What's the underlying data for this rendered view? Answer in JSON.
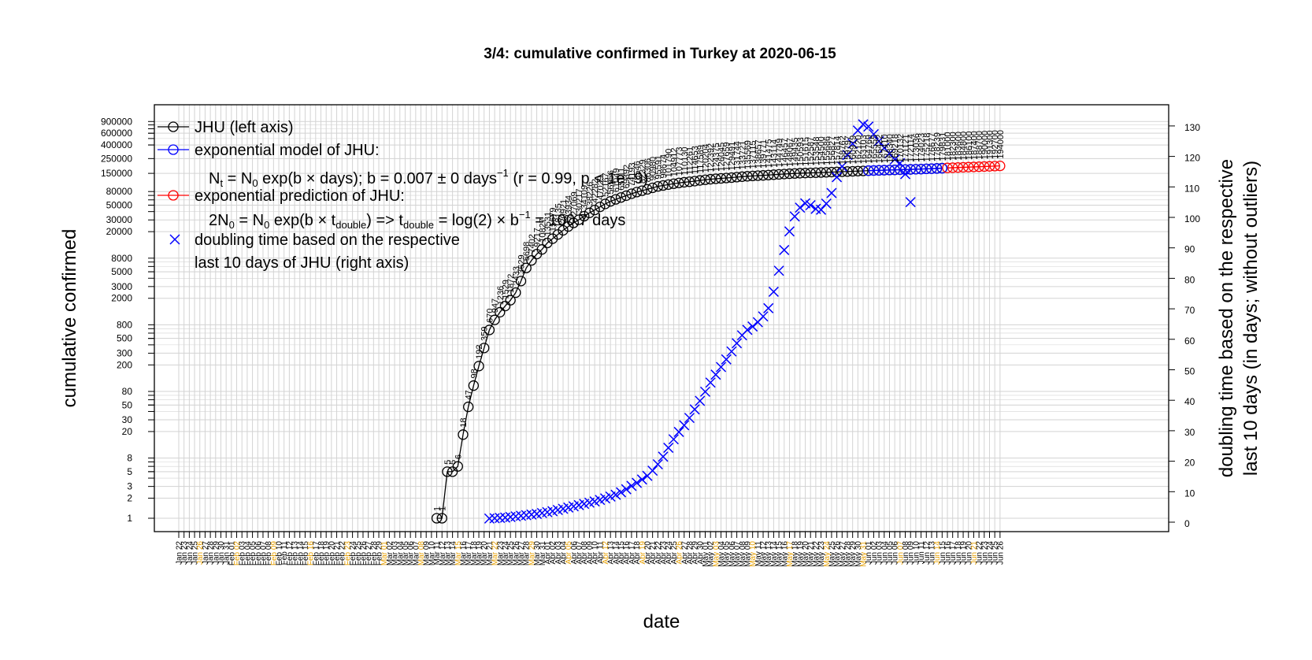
{
  "chart_data": {
    "type": "line",
    "title": "3/4: cumulative confirmed in Turkey at 2020-06-15",
    "xlabel": "date",
    "ylabel_left": "cumulative confirmed",
    "ylabel_right_line1": "doubling time based on the respective",
    "ylabel_right_line2": "last 10 days (in days; without outliers)",
    "y_left_scale": "log",
    "y_left_ticks": [
      1,
      2,
      3,
      5,
      8,
      20,
      30,
      50,
      80,
      200,
      300,
      500,
      800,
      2000,
      3000,
      5000,
      8000,
      20000,
      30000,
      50000,
      80000,
      150000,
      250000,
      400000,
      600000,
      900000
    ],
    "y_left_tick_labels": [
      "1",
      "2",
      "3",
      "5",
      "8",
      "20",
      "30",
      "50",
      "80",
      "200",
      "300",
      "500",
      "800",
      "2000",
      "3000",
      "5000",
      "8000",
      "20000",
      "30000",
      "50000",
      "80000",
      "150000",
      "250000",
      "400000",
      "600000",
      "900000"
    ],
    "y_right_ticks": [
      0,
      10,
      20,
      30,
      40,
      50,
      60,
      70,
      80,
      90,
      100,
      110,
      120,
      130
    ],
    "y_right_tick_labels": [
      "0",
      "10",
      "20",
      "30",
      "40",
      "50",
      "60",
      "70",
      "80",
      "90",
      "100",
      "110",
      "120",
      "130"
    ],
    "y_right_lim": [
      0,
      130
    ],
    "x_start": "2020-01-22",
    "x_end": "2020-06-26",
    "grid": true,
    "legend_position": "top-left",
    "legend": {
      "jhu": "JHU (left axis)",
      "model": "exponential model of JHU:",
      "model_formula_lhs": "N",
      "model_formula_sub": "t",
      "model_formula_rest": " = N",
      "model_formula_sub0": "0",
      "model_formula_tail": " exp(b × days); b = 0.007 ± 0 days",
      "model_formula_exp": "−1",
      "model_formula_end": " (r = 0.99, p < 1e−9)",
      "prediction": "exponential prediction of JHU:",
      "prediction_formula_a": "2N",
      "prediction_formula_sub0": "0",
      "prediction_formula_b": " = N",
      "prediction_formula_sub0b": "0",
      "prediction_formula_c": " exp(b × t",
      "prediction_formula_subd": "double",
      "prediction_formula_d": ") => t",
      "prediction_formula_sube": "double",
      "prediction_formula_e": " = log(2) × b",
      "prediction_formula_exp": "−1",
      "prediction_formula_f": " = 100.7 days",
      "doubling_line1": "doubling time based on the respective",
      "doubling_line2": "last 10 days of JHU (right axis)"
    },
    "colors": {
      "jhu": "#000000",
      "model": "#0000ff",
      "prediction": "#ff0000",
      "doubling": "#0000ff",
      "weekend_label": "#e69f00",
      "grid": "#d3d3d3"
    },
    "series": [
      {
        "name": "JHU (left axis)",
        "x": [
          "2020-03-11",
          "2020-03-12",
          "2020-03-13",
          "2020-03-14",
          "2020-03-15",
          "2020-03-16",
          "2020-03-17",
          "2020-03-18",
          "2020-03-19",
          "2020-03-20",
          "2020-03-21",
          "2020-03-22",
          "2020-03-23",
          "2020-03-24",
          "2020-03-25",
          "2020-03-26",
          "2020-03-27",
          "2020-03-28",
          "2020-03-29",
          "2020-03-30",
          "2020-03-31",
          "2020-04-01",
          "2020-04-02",
          "2020-04-03",
          "2020-04-04",
          "2020-04-05",
          "2020-04-06",
          "2020-04-07",
          "2020-04-08",
          "2020-04-09",
          "2020-04-10",
          "2020-04-11",
          "2020-04-12",
          "2020-04-13",
          "2020-04-14",
          "2020-04-15",
          "2020-04-16",
          "2020-04-17",
          "2020-04-18",
          "2020-04-19",
          "2020-04-20",
          "2020-04-21",
          "2020-04-22",
          "2020-04-23",
          "2020-04-24",
          "2020-04-25",
          "2020-04-26",
          "2020-04-27",
          "2020-04-28",
          "2020-04-29",
          "2020-04-30",
          "2020-05-01",
          "2020-05-02",
          "2020-05-03",
          "2020-05-04",
          "2020-05-05",
          "2020-05-06",
          "2020-05-07",
          "2020-05-08",
          "2020-05-09",
          "2020-05-10",
          "2020-05-11",
          "2020-05-12",
          "2020-05-13",
          "2020-05-14",
          "2020-05-15",
          "2020-05-16",
          "2020-05-17",
          "2020-05-18",
          "2020-05-19",
          "2020-05-20",
          "2020-05-21",
          "2020-05-22",
          "2020-05-23",
          "2020-05-24",
          "2020-05-25",
          "2020-05-26",
          "2020-05-27",
          "2020-05-28",
          "2020-05-29",
          "2020-05-30",
          "2020-05-31",
          "2020-06-01",
          "2020-06-02",
          "2020-06-03",
          "2020-06-04",
          "2020-06-05",
          "2020-06-06",
          "2020-06-07",
          "2020-06-08",
          "2020-06-09",
          "2020-06-10",
          "2020-06-11",
          "2020-06-12",
          "2020-06-13",
          "2020-06-14",
          "2020-06-15"
        ],
        "values": [
          1,
          1,
          5,
          5,
          6,
          18,
          47,
          98,
          192,
          359,
          670,
          947,
          1236,
          1529,
          1872,
          2433,
          3629,
          5698,
          7402,
          9217,
          10827,
          13531,
          15679,
          18135,
          20921,
          23934,
          27069,
          30217,
          34109,
          38226,
          42282,
          47029,
          52167,
          56956,
          61049,
          65111,
          69392,
          74193,
          78546,
          82329,
          86306,
          90980,
          95591,
          98674,
          101790,
          104912,
          107773,
          110130,
          112261,
          114653,
          117589,
          120204,
          122392,
          124375,
          126045,
          127659,
          129491,
          131744,
          133721,
          135569,
          137115,
          138657,
          139771,
          141475,
          143114,
          144749,
          146457,
          148067,
          149435,
          150593,
          151615,
          152587,
          153548,
          154500,
          155686,
          156827,
          157814,
          158762,
          159797,
          160979,
          162120,
          163103,
          164769,
          165555,
          166422,
          167410,
          168340,
          169218,
          170132,
          171121,
          172114,
          173036,
          174023,
          175218,
          176677,
          178239,
          179831
        ],
        "point_labels": [
          "1",
          "1",
          "5",
          "5",
          "6",
          "18",
          "47",
          "98",
          "192",
          "359",
          "670",
          "947",
          "1236",
          "1529",
          "1872",
          "2433",
          "3629",
          "5698",
          "7402",
          "9217",
          "10827",
          "13531",
          "15679",
          "18135",
          "20921",
          "23934",
          "27069",
          "30217",
          "34109",
          "38226",
          "42282",
          "47029",
          "52167",
          "56956",
          "61049",
          "65111",
          "69392",
          "74193",
          "78546",
          "82329",
          "86306",
          "90980",
          "95591",
          "98674",
          "101790",
          "104912",
          "107773",
          "110130",
          "112261",
          "114653",
          "117589",
          "120204",
          "122392",
          "124375",
          "126045",
          "127659",
          "129491",
          "131744",
          "133721",
          "135569",
          "137115",
          "138657",
          "139771",
          "141475",
          "143114",
          "144749",
          "146457",
          "148067",
          "149435",
          "150593",
          "151615",
          "152587",
          "153548",
          "154500",
          "155686",
          "156827",
          "157814",
          "158762",
          "159797",
          "160979",
          "162120",
          "163103",
          "164769",
          "165555",
          "166422",
          "167410",
          "168340",
          "169218",
          "170132",
          "171121",
          "172114",
          "173036",
          "174023",
          "175218",
          "176677",
          "178239",
          "179831"
        ]
      },
      {
        "name": "exponential model of JHU:",
        "x": [
          "2020-06-01",
          "2020-06-02",
          "2020-06-03",
          "2020-06-04",
          "2020-06-05",
          "2020-06-06",
          "2020-06-07",
          "2020-06-08",
          "2020-06-09",
          "2020-06-10",
          "2020-06-11",
          "2020-06-12",
          "2020-06-13",
          "2020-06-14",
          "2020-06-15"
        ],
        "values": [
          164600,
          165700,
          166500,
          167500,
          168400,
          169300,
          170300,
          171200,
          172100,
          173100,
          174000,
          175200,
          176300,
          177500,
          178700
        ]
      },
      {
        "name": "exponential prediction of JHU:",
        "x": [
          "2020-06-16",
          "2020-06-17",
          "2020-06-18",
          "2020-06-19",
          "2020-06-20",
          "2020-06-21",
          "2020-06-22",
          "2020-06-23",
          "2020-06-24",
          "2020-06-25",
          "2020-06-26"
        ],
        "values": [
          181000,
          182300,
          183600,
          184800,
          186100,
          187400,
          188700,
          190000,
          191300,
          192700,
          194000
        ],
        "point_labels": [
          "181000",
          "182300",
          "183600",
          "184800",
          "186100",
          "187400",
          "188700",
          "190000",
          "191300",
          "192700",
          "194000"
        ]
      },
      {
        "name": "doubling time based on the respective last 10 days of JHU (right axis)",
        "x": [
          "2020-03-21",
          "2020-03-22",
          "2020-03-23",
          "2020-03-24",
          "2020-03-25",
          "2020-03-26",
          "2020-03-27",
          "2020-03-28",
          "2020-03-29",
          "2020-03-30",
          "2020-03-31",
          "2020-04-01",
          "2020-04-02",
          "2020-04-03",
          "2020-04-04",
          "2020-04-05",
          "2020-04-06",
          "2020-04-07",
          "2020-04-08",
          "2020-04-09",
          "2020-04-10",
          "2020-04-11",
          "2020-04-12",
          "2020-04-13",
          "2020-04-14",
          "2020-04-15",
          "2020-04-16",
          "2020-04-17",
          "2020-04-18",
          "2020-04-19",
          "2020-04-20",
          "2020-04-21",
          "2020-04-22",
          "2020-04-23",
          "2020-04-24",
          "2020-04-25",
          "2020-04-26",
          "2020-04-27",
          "2020-04-28",
          "2020-04-29",
          "2020-04-30",
          "2020-05-01",
          "2020-05-02",
          "2020-05-03",
          "2020-05-04",
          "2020-05-05",
          "2020-05-06",
          "2020-05-07",
          "2020-05-08",
          "2020-05-09",
          "2020-05-10",
          "2020-05-11",
          "2020-05-12",
          "2020-05-13",
          "2020-05-14",
          "2020-05-15",
          "2020-05-16",
          "2020-05-17",
          "2020-05-18",
          "2020-05-19",
          "2020-05-20",
          "2020-05-21",
          "2020-05-22",
          "2020-05-23",
          "2020-05-24",
          "2020-05-25",
          "2020-05-26",
          "2020-05-27",
          "2020-05-28",
          "2020-05-29",
          "2020-05-30",
          "2020-05-31",
          "2020-06-01",
          "2020-06-02",
          "2020-06-03",
          "2020-06-04",
          "2020-06-05",
          "2020-06-06",
          "2020-06-07",
          "2020-06-08",
          "2020-06-09",
          "2020-06-10",
          "2020-06-11",
          "2020-06-12",
          "2020-06-13",
          "2020-06-14",
          "2020-06-15"
        ],
        "values": [
          1.2,
          1.3,
          1.4,
          1.5,
          1.7,
          1.9,
          2.1,
          2.3,
          2.5,
          2.7,
          3.0,
          3.3,
          3.6,
          4.0,
          4.4,
          4.8,
          5.2,
          5.6,
          6.0,
          6.4,
          6.8,
          7.3,
          7.8,
          8.4,
          9.0,
          9.8,
          10.8,
          11.9,
          12.9,
          14.0,
          15.2,
          16.9,
          19.0,
          21.5,
          24.4,
          27.2,
          29.6,
          31.8,
          34.2,
          37.0,
          39.8,
          42.8,
          45.8,
          48.4,
          50.9,
          53.4,
          56.0,
          58.7,
          61.3,
          63.1,
          64.2,
          65.6,
          67.5,
          70.2,
          75.6,
          82.5,
          89.3,
          95.4,
          100.3,
          103.2,
          104.6,
          104.0,
          102.8,
          102.5,
          104.5,
          108.0,
          113.2,
          116.7,
          120.5,
          124.2,
          128.5,
          130.5,
          129.8,
          127.3,
          125.0,
          122.8,
          121.0,
          119.0,
          117.8,
          114.2,
          105.0,
          null,
          null,
          null,
          null,
          null,
          null
        ]
      }
    ],
    "x_tick_labels": [
      "Jan 22",
      "Jan 23",
      "Jan 24",
      "Jan 25",
      "Jan 26",
      "Jan 27",
      "Jan 28",
      "Jan 29",
      "Jan 30",
      "Jan 31",
      "Feb 01",
      "Feb 02",
      "Feb 03",
      "Feb 04",
      "Feb 05",
      "Feb 06",
      "Feb 07",
      "Feb 08",
      "Feb 09",
      "Feb 10",
      "Feb 11",
      "Feb 12",
      "Feb 13",
      "Feb 14",
      "Feb 15",
      "Feb 16",
      "Feb 17",
      "Feb 18",
      "Feb 19",
      "Feb 20",
      "Feb 21",
      "Feb 22",
      "Feb 23",
      "Feb 24",
      "Feb 25",
      "Feb 26",
      "Feb 27",
      "Feb 28",
      "Feb 29",
      "Mar 01",
      "Mar 02",
      "Mar 03",
      "Mar 04",
      "Mar 05",
      "Mar 06",
      "Mar 07",
      "Mar 08",
      "Mar 09",
      "Mar 10",
      "Mar 11",
      "Mar 12",
      "Mar 13",
      "Mar 14",
      "Mar 15",
      "Mar 16",
      "Mar 17",
      "Mar 18",
      "Mar 19",
      "Mar 20",
      "Mar 21",
      "Mar 22",
      "Mar 23",
      "Mar 24",
      "Mar 25",
      "Mar 26",
      "Mar 27",
      "Mar 28",
      "Mar 29",
      "Mar 30",
      "Mar 31",
      "Apr 01",
      "Apr 02",
      "Apr 03",
      "Apr 04",
      "Apr 05",
      "Apr 06",
      "Apr 07",
      "Apr 08",
      "Apr 09",
      "Apr 10",
      "Apr 11",
      "Apr 12",
      "Apr 13",
      "Apr 14",
      "Apr 15",
      "Apr 16",
      "Apr 17",
      "Apr 18",
      "Apr 19",
      "Apr 20",
      "Apr 21",
      "Apr 22",
      "Apr 23",
      "Apr 24",
      "Apr 25",
      "Apr 26",
      "Apr 27",
      "Apr 28",
      "Apr 29",
      "Apr 30",
      "May 01",
      "May 02",
      "May 03",
      "May 04",
      "May 05",
      "May 06",
      "May 07",
      "May 08",
      "May 09",
      "May 10",
      "May 11",
      "May 12",
      "May 13",
      "May 14",
      "May 15",
      "May 16",
      "May 17",
      "May 18",
      "May 19",
      "May 20",
      "May 21",
      "May 22",
      "May 23",
      "May 24",
      "May 25",
      "May 26",
      "May 27",
      "May 28",
      "May 29",
      "May 30",
      "May 31",
      "Jun 01",
      "Jun 02",
      "Jun 03",
      "Jun 04",
      "Jun 05",
      "Jun 06",
      "Jun 07",
      "Jun 08",
      "Jun 09",
      "Jun 10",
      "Jun 11",
      "Jun 12",
      "Jun 13",
      "Jun 14",
      "Jun 15",
      "Jun 16",
      "Jun 17",
      "Jun 18",
      "Jun 19",
      "Jun 20",
      "Jun 21",
      "Jun 22",
      "Jun 23",
      "Jun 24",
      "Jun 25",
      "Jun 26"
    ]
  }
}
